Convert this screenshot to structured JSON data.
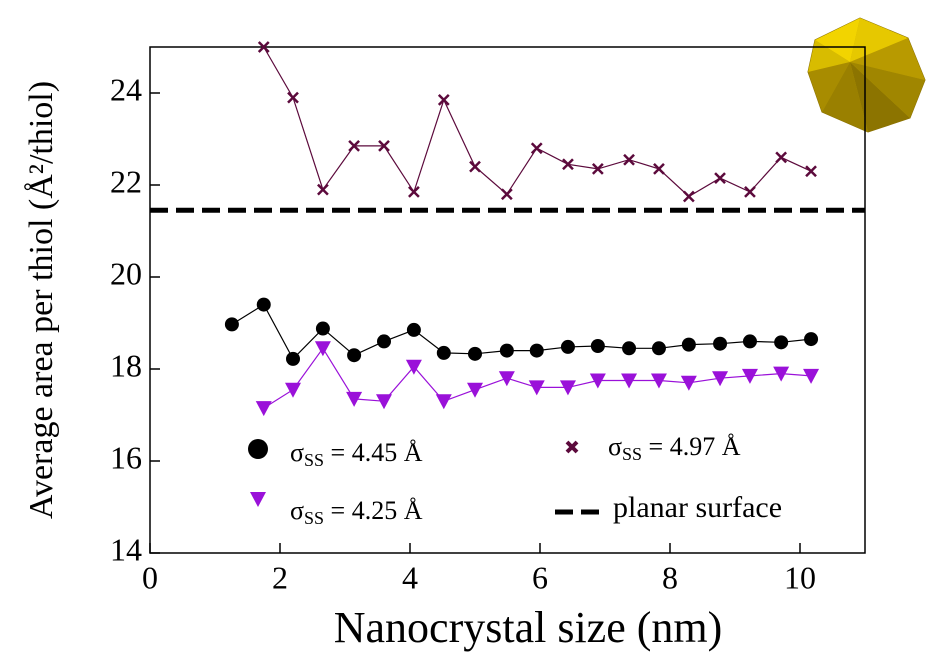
{
  "chart_data": {
    "type": "line",
    "xlabel": "Nanocrystal size (nm)",
    "ylabel": "Average area per thiol (Å²/thiol)",
    "xlim": [
      0,
      11
    ],
    "xticks": [
      0,
      2,
      4,
      6,
      8,
      10
    ],
    "ylim": [
      14,
      25
    ],
    "yticks": [
      14,
      16,
      18,
      20,
      22,
      24
    ],
    "series": [
      {
        "name": "σSS = 4.45 Å",
        "color": "#000000",
        "marker": "circle",
        "x": [
          1.26,
          1.75,
          2.2,
          2.66,
          3.14,
          3.6,
          4.06,
          4.52,
          5.0,
          5.49,
          5.95,
          6.43,
          6.89,
          7.37,
          7.83,
          8.29,
          8.77,
          9.23,
          9.71,
          10.17
        ],
        "values": [
          18.97,
          19.4,
          18.22,
          18.88,
          18.3,
          18.6,
          18.85,
          18.35,
          18.33,
          18.4,
          18.4,
          18.48,
          18.5,
          18.45,
          18.45,
          18.53,
          18.55,
          18.6,
          18.58,
          18.65
        ]
      },
      {
        "name": "σSS = 4.25 Å",
        "color": "#9a11d9",
        "marker": "triangle",
        "x": [
          1.75,
          2.2,
          2.66,
          3.14,
          3.6,
          4.06,
          4.52,
          5.0,
          5.49,
          5.95,
          6.43,
          6.89,
          7.37,
          7.83,
          8.29,
          8.77,
          9.23,
          9.71,
          10.17
        ],
        "values": [
          17.15,
          17.55,
          18.45,
          17.35,
          17.3,
          18.05,
          17.3,
          17.55,
          17.8,
          17.6,
          17.6,
          17.75,
          17.75,
          17.75,
          17.7,
          17.8,
          17.85,
          17.9,
          17.85
        ]
      },
      {
        "name": "σSS = 4.97 Å",
        "color": "#5c0a3c",
        "marker": "cross",
        "x": [
          1.75,
          2.2,
          2.66,
          3.14,
          3.6,
          4.06,
          4.52,
          5.0,
          5.49,
          5.95,
          6.43,
          6.89,
          7.37,
          7.83,
          8.29,
          8.77,
          9.23,
          9.71,
          10.17
        ],
        "values": [
          25.0,
          23.9,
          21.9,
          22.85,
          22.85,
          21.85,
          23.85,
          22.4,
          21.8,
          22.8,
          22.45,
          22.35,
          22.55,
          22.35,
          21.75,
          22.15,
          21.85,
          22.6,
          22.3
        ]
      }
    ],
    "reference_line": {
      "name": "planar surface",
      "value": 21.45,
      "color": "#000000"
    }
  }
}
